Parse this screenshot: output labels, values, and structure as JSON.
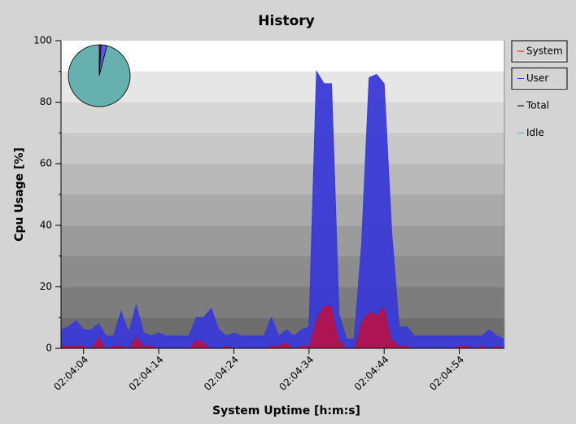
{
  "chart_data": [
    {
      "type": "stacked-area",
      "title": "History",
      "x_label": "System Uptime [h:m:s]",
      "y_label": "Cpu Usage [%]",
      "x": [
        7441,
        7442,
        7443,
        7444,
        7445,
        7446,
        7447,
        7448,
        7449,
        7450,
        7451,
        7452,
        7453,
        7454,
        7455,
        7456,
        7457,
        7458,
        7459,
        7460,
        7461,
        7462,
        7463,
        7464,
        7465,
        7466,
        7467,
        7468,
        7469,
        7470,
        7471,
        7472,
        7473,
        7474,
        7475,
        7476,
        7477,
        7478,
        7479,
        7480,
        7481,
        7482,
        7483,
        7484,
        7485,
        7486,
        7487,
        7488,
        7489,
        7490,
        7491,
        7492,
        7493,
        7494,
        7495,
        7496,
        7497,
        7498,
        7499,
        7500
      ],
      "series": [
        {
          "name": "System",
          "color": "#b01050",
          "values": [
            1,
            1,
            1,
            1,
            0,
            4,
            0,
            1,
            1,
            0,
            4,
            1,
            1,
            0,
            0,
            0,
            0,
            0,
            3,
            2,
            0,
            0,
            1,
            0,
            0,
            0,
            0,
            0,
            1,
            1,
            2,
            0,
            1,
            1,
            10,
            14,
            14,
            3,
            0,
            0,
            9,
            12,
            11,
            14,
            3,
            1,
            1,
            0,
            0,
            0,
            0,
            0,
            0,
            1,
            1,
            0,
            1,
            0,
            1,
            0
          ]
        },
        {
          "name": "User",
          "color": "#3a3ad6",
          "values": [
            5,
            6,
            8,
            5,
            6,
            4,
            4,
            3,
            11,
            5,
            10,
            4,
            3,
            5,
            4,
            4,
            4,
            4,
            7,
            8,
            13,
            6,
            3,
            5,
            4,
            4,
            4,
            4,
            9,
            3,
            4,
            4,
            5,
            6,
            80,
            72,
            72,
            8,
            3,
            3,
            25,
            76,
            78,
            72,
            35,
            6,
            6,
            4,
            4,
            4,
            4,
            4,
            4,
            3,
            3,
            4,
            3,
            6,
            3,
            3
          ]
        }
      ],
      "legend": [
        {
          "name": "System",
          "color": "#ff0000"
        },
        {
          "name": "User",
          "color": "#3030ff"
        },
        {
          "name": "Total",
          "color": "#000000"
        },
        {
          "name": "Idle",
          "color": "#5faaa8"
        }
      ],
      "xlim": [
        7441,
        7500
      ],
      "xticks": [
        {
          "value": 7444,
          "label": "02:04:04"
        },
        {
          "value": 7454,
          "label": "02:04:14"
        },
        {
          "value": 7464,
          "label": "02:04:24"
        },
        {
          "value": 7474,
          "label": "02:04:34"
        },
        {
          "value": 7484,
          "label": "02:04:44"
        },
        {
          "value": 7494,
          "label": "02:04:54"
        }
      ],
      "ylim": [
        0,
        100
      ],
      "yticks": [
        0,
        20,
        40,
        60,
        80,
        100
      ],
      "minor_yticks": [
        0,
        10,
        20,
        30,
        40,
        50,
        60,
        70,
        80,
        90,
        100
      ]
    },
    {
      "type": "pie",
      "values": [
        1,
        3,
        96
      ],
      "colors": [
        "#b01050",
        "#5a5ae8",
        "#66b0b0"
      ]
    }
  ]
}
